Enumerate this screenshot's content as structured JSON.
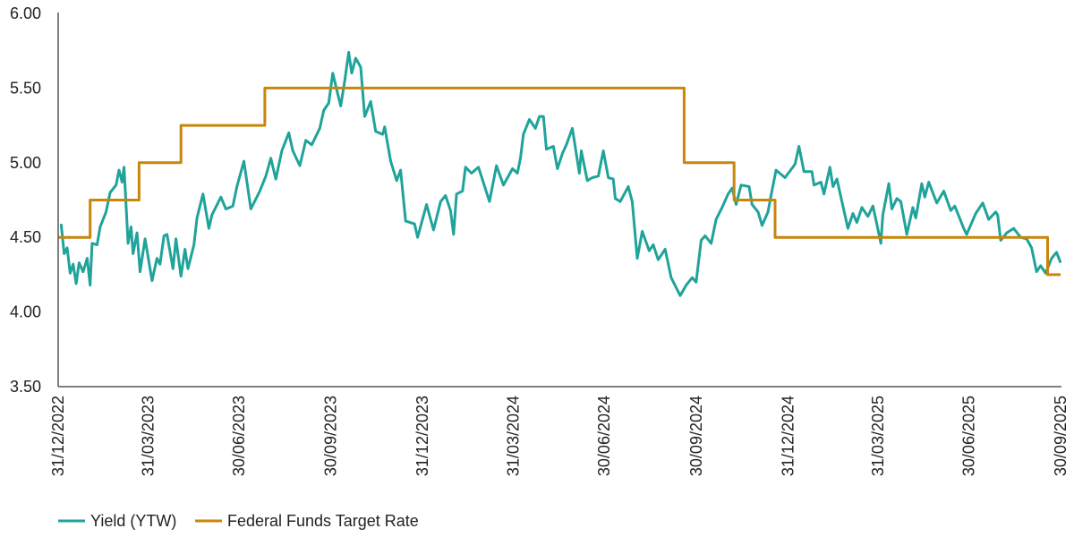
{
  "chart_data": {
    "type": "line",
    "title": "",
    "xlabel": "",
    "ylabel": "",
    "ylim": [
      3.5,
      6.0
    ],
    "xlim": [
      "2022-12-31",
      "2025-09-30"
    ],
    "y_ticks": [
      "3.50",
      "4.00",
      "4.50",
      "5.00",
      "5.50",
      "6.00"
    ],
    "x_ticks": [
      "31/12/2022",
      "31/03/2023",
      "30/06/2023",
      "30/09/2023",
      "31/12/2023",
      "31/03/2024",
      "30/06/2024",
      "30/09/2024",
      "31/12/2024",
      "31/03/2025",
      "30/06/2025",
      "30/09/2025"
    ],
    "x_tick_dates": [
      "2022-12-31",
      "2023-03-31",
      "2023-06-30",
      "2023-09-30",
      "2023-12-31",
      "2024-03-31",
      "2024-06-30",
      "2024-09-30",
      "2024-12-31",
      "2025-03-31",
      "2025-06-30",
      "2025-09-30"
    ],
    "grid": false,
    "legend_position": "bottom-left",
    "series": [
      {
        "name": "Yield (YTW)",
        "color": "#1fa39a",
        "step": false,
        "points": [
          [
            "2023-01-03",
            4.59
          ],
          [
            "2023-01-06",
            4.39
          ],
          [
            "2023-01-09",
            4.43
          ],
          [
            "2023-01-12",
            4.26
          ],
          [
            "2023-01-15",
            4.32
          ],
          [
            "2023-01-18",
            4.19
          ],
          [
            "2023-01-21",
            4.33
          ],
          [
            "2023-01-25",
            4.27
          ],
          [
            "2023-01-29",
            4.36
          ],
          [
            "2023-02-01",
            4.18
          ],
          [
            "2023-02-03",
            4.46
          ],
          [
            "2023-02-08",
            4.45
          ],
          [
            "2023-02-11",
            4.57
          ],
          [
            "2023-02-17",
            4.67
          ],
          [
            "2023-02-21",
            4.8
          ],
          [
            "2023-02-27",
            4.85
          ],
          [
            "2023-03-02",
            4.95
          ],
          [
            "2023-03-05",
            4.87
          ],
          [
            "2023-03-07",
            4.97
          ],
          [
            "2023-03-11",
            4.46
          ],
          [
            "2023-03-14",
            4.57
          ],
          [
            "2023-03-16",
            4.39
          ],
          [
            "2023-03-20",
            4.53
          ],
          [
            "2023-03-23",
            4.27
          ],
          [
            "2023-03-28",
            4.49
          ],
          [
            "2023-04-04",
            4.21
          ],
          [
            "2023-04-09",
            4.36
          ],
          [
            "2023-04-12",
            4.32
          ],
          [
            "2023-04-16",
            4.51
          ],
          [
            "2023-04-19",
            4.52
          ],
          [
            "2023-04-25",
            4.29
          ],
          [
            "2023-04-28",
            4.49
          ],
          [
            "2023-05-03",
            4.24
          ],
          [
            "2023-05-07",
            4.42
          ],
          [
            "2023-05-10",
            4.29
          ],
          [
            "2023-05-16",
            4.45
          ],
          [
            "2023-05-19",
            4.63
          ],
          [
            "2023-05-25",
            4.79
          ],
          [
            "2023-05-31",
            4.56
          ],
          [
            "2023-06-03",
            4.65
          ],
          [
            "2023-06-12",
            4.77
          ],
          [
            "2023-06-17",
            4.69
          ],
          [
            "2023-06-24",
            4.71
          ],
          [
            "2023-06-28",
            4.84
          ],
          [
            "2023-07-05",
            5.01
          ],
          [
            "2023-07-12",
            4.69
          ],
          [
            "2023-07-21",
            4.81
          ],
          [
            "2023-07-27",
            4.91
          ],
          [
            "2023-08-01",
            5.03
          ],
          [
            "2023-08-06",
            4.89
          ],
          [
            "2023-08-12",
            5.08
          ],
          [
            "2023-08-19",
            5.2
          ],
          [
            "2023-08-23",
            5.08
          ],
          [
            "2023-08-30",
            4.98
          ],
          [
            "2023-09-05",
            5.15
          ],
          [
            "2023-09-11",
            5.12
          ],
          [
            "2023-09-19",
            5.23
          ],
          [
            "2023-09-23",
            5.35
          ],
          [
            "2023-09-28",
            5.4
          ],
          [
            "2023-10-02",
            5.6
          ],
          [
            "2023-10-06",
            5.49
          ],
          [
            "2023-10-10",
            5.38
          ],
          [
            "2023-10-14",
            5.55
          ],
          [
            "2023-10-18",
            5.74
          ],
          [
            "2023-10-21",
            5.6
          ],
          [
            "2023-10-25",
            5.7
          ],
          [
            "2023-10-30",
            5.64
          ],
          [
            "2023-11-03",
            5.31
          ],
          [
            "2023-11-09",
            5.41
          ],
          [
            "2023-11-14",
            5.21
          ],
          [
            "2023-11-21",
            5.19
          ],
          [
            "2023-11-23",
            5.24
          ],
          [
            "2023-11-29",
            5.01
          ],
          [
            "2023-12-05",
            4.88
          ],
          [
            "2023-12-09",
            4.95
          ],
          [
            "2023-12-14",
            4.61
          ],
          [
            "2023-12-23",
            4.59
          ],
          [
            "2023-12-26",
            4.5
          ],
          [
            "2024-01-04",
            4.72
          ],
          [
            "2024-01-11",
            4.55
          ],
          [
            "2024-01-18",
            4.74
          ],
          [
            "2024-01-23",
            4.78
          ],
          [
            "2024-01-28",
            4.68
          ],
          [
            "2024-01-31",
            4.52
          ],
          [
            "2024-02-03",
            4.79
          ],
          [
            "2024-02-09",
            4.81
          ],
          [
            "2024-02-12",
            4.97
          ],
          [
            "2024-02-18",
            4.93
          ],
          [
            "2024-02-25",
            4.97
          ],
          [
            "2024-03-07",
            4.74
          ],
          [
            "2024-03-14",
            4.98
          ],
          [
            "2024-03-21",
            4.85
          ],
          [
            "2024-03-30",
            4.96
          ],
          [
            "2024-04-04",
            4.93
          ],
          [
            "2024-04-07",
            5.03
          ],
          [
            "2024-04-10",
            5.19
          ],
          [
            "2024-04-16",
            5.29
          ],
          [
            "2024-04-22",
            5.23
          ],
          [
            "2024-04-26",
            5.31
          ],
          [
            "2024-04-30",
            5.31
          ],
          [
            "2024-05-03",
            5.09
          ],
          [
            "2024-05-10",
            5.11
          ],
          [
            "2024-05-14",
            4.96
          ],
          [
            "2024-05-19",
            5.06
          ],
          [
            "2024-05-23",
            5.12
          ],
          [
            "2024-05-29",
            5.23
          ],
          [
            "2024-06-05",
            4.93
          ],
          [
            "2024-06-07",
            5.08
          ],
          [
            "2024-06-13",
            4.88
          ],
          [
            "2024-06-18",
            4.9
          ],
          [
            "2024-06-24",
            4.91
          ],
          [
            "2024-06-29",
            5.08
          ],
          [
            "2024-07-04",
            4.9
          ],
          [
            "2024-07-09",
            4.89
          ],
          [
            "2024-07-11",
            4.76
          ],
          [
            "2024-07-16",
            4.74
          ],
          [
            "2024-07-24",
            4.84
          ],
          [
            "2024-07-28",
            4.74
          ],
          [
            "2024-08-02",
            4.36
          ],
          [
            "2024-08-07",
            4.54
          ],
          [
            "2024-08-14",
            4.41
          ],
          [
            "2024-08-18",
            4.45
          ],
          [
            "2024-08-23",
            4.35
          ],
          [
            "2024-08-30",
            4.42
          ],
          [
            "2024-09-05",
            4.23
          ],
          [
            "2024-09-14",
            4.11
          ],
          [
            "2024-09-20",
            4.18
          ],
          [
            "2024-09-26",
            4.23
          ],
          [
            "2024-09-30",
            4.2
          ],
          [
            "2024-10-05",
            4.48
          ],
          [
            "2024-10-09",
            4.51
          ],
          [
            "2024-10-15",
            4.46
          ],
          [
            "2024-10-20",
            4.62
          ],
          [
            "2024-10-26",
            4.7
          ],
          [
            "2024-11-01",
            4.79
          ],
          [
            "2024-11-05",
            4.83
          ],
          [
            "2024-11-09",
            4.72
          ],
          [
            "2024-11-14",
            4.85
          ],
          [
            "2024-11-22",
            4.84
          ],
          [
            "2024-11-25",
            4.72
          ],
          [
            "2024-12-01",
            4.67
          ],
          [
            "2024-12-05",
            4.58
          ],
          [
            "2024-12-11",
            4.67
          ],
          [
            "2024-12-14",
            4.78
          ],
          [
            "2024-12-19",
            4.95
          ],
          [
            "2024-12-28",
            4.9
          ],
          [
            "2025-01-07",
            4.99
          ],
          [
            "2025-01-11",
            5.11
          ],
          [
            "2025-01-16",
            4.94
          ],
          [
            "2025-01-24",
            4.94
          ],
          [
            "2025-01-26",
            4.85
          ],
          [
            "2025-02-02",
            4.87
          ],
          [
            "2025-02-05",
            4.79
          ],
          [
            "2025-02-11",
            4.97
          ],
          [
            "2025-02-14",
            4.84
          ],
          [
            "2025-02-18",
            4.89
          ],
          [
            "2025-03-01",
            4.56
          ],
          [
            "2025-03-06",
            4.66
          ],
          [
            "2025-03-10",
            4.6
          ],
          [
            "2025-03-15",
            4.7
          ],
          [
            "2025-03-21",
            4.64
          ],
          [
            "2025-03-26",
            4.71
          ],
          [
            "2025-03-30",
            4.59
          ],
          [
            "2025-04-03",
            4.46
          ],
          [
            "2025-04-05",
            4.65
          ],
          [
            "2025-04-11",
            4.86
          ],
          [
            "2025-04-14",
            4.69
          ],
          [
            "2025-04-19",
            4.76
          ],
          [
            "2025-04-23",
            4.74
          ],
          [
            "2025-04-29",
            4.52
          ],
          [
            "2025-05-05",
            4.7
          ],
          [
            "2025-05-08",
            4.63
          ],
          [
            "2025-05-14",
            4.86
          ],
          [
            "2025-05-17",
            4.77
          ],
          [
            "2025-05-21",
            4.87
          ],
          [
            "2025-05-29",
            4.73
          ],
          [
            "2025-06-05",
            4.81
          ],
          [
            "2025-06-12",
            4.68
          ],
          [
            "2025-06-16",
            4.71
          ],
          [
            "2025-06-25",
            4.56
          ],
          [
            "2025-06-28",
            4.52
          ],
          [
            "2025-07-07",
            4.66
          ],
          [
            "2025-07-14",
            4.73
          ],
          [
            "2025-07-20",
            4.62
          ],
          [
            "2025-07-27",
            4.67
          ],
          [
            "2025-07-29",
            4.65
          ],
          [
            "2025-08-01",
            4.48
          ],
          [
            "2025-08-07",
            4.53
          ],
          [
            "2025-08-14",
            4.56
          ],
          [
            "2025-08-21",
            4.5
          ],
          [
            "2025-08-27",
            4.49
          ],
          [
            "2025-09-01",
            4.43
          ],
          [
            "2025-09-06",
            4.27
          ],
          [
            "2025-09-10",
            4.31
          ],
          [
            "2025-09-15",
            4.26
          ],
          [
            "2025-09-21",
            4.36
          ],
          [
            "2025-09-26",
            4.4
          ],
          [
            "2025-09-30",
            4.33
          ]
        ]
      },
      {
        "name": "Federal Funds Target Rate",
        "color": "#c8860a",
        "step": true,
        "points": [
          [
            "2022-12-31",
            4.5
          ],
          [
            "2023-02-01",
            4.75
          ],
          [
            "2023-03-22",
            5.0
          ],
          [
            "2023-05-03",
            5.25
          ],
          [
            "2023-07-26",
            5.5
          ],
          [
            "2024-09-18",
            5.0
          ],
          [
            "2024-11-07",
            4.75
          ],
          [
            "2024-12-18",
            4.5
          ],
          [
            "2025-09-17",
            4.25
          ],
          [
            "2025-09-30",
            4.25
          ]
        ]
      }
    ]
  }
}
